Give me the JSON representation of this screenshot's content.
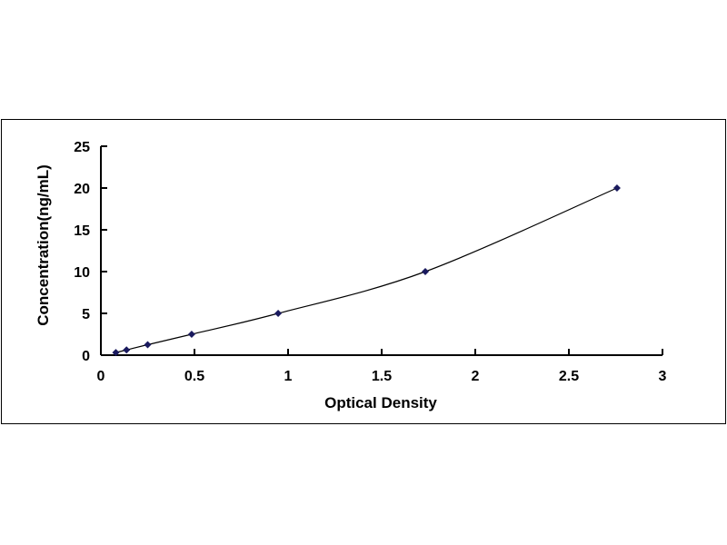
{
  "chart_data": {
    "type": "scatter",
    "title": "",
    "xlabel": "Optical Density",
    "ylabel": "Concentration(ng/mL)",
    "xlim": [
      0,
      3
    ],
    "ylim": [
      0,
      25
    ],
    "xticks": [
      "0",
      "0.5",
      "1",
      "1.5",
      "2",
      "2.5",
      "3"
    ],
    "yticks": [
      "0",
      "5",
      "10",
      "15",
      "20",
      "25"
    ],
    "grid": false,
    "legend": "none",
    "marker": "diamond",
    "trendline": "smooth curve",
    "colors": {
      "marker": "#1a1a5e",
      "line": "#000000"
    },
    "series": [
      {
        "x": [
          0.08,
          0.137,
          0.25,
          0.485,
          0.947,
          1.733,
          2.757
        ],
        "y": [
          0.312,
          0.625,
          1.25,
          2.5,
          5,
          10,
          20
        ]
      }
    ]
  }
}
